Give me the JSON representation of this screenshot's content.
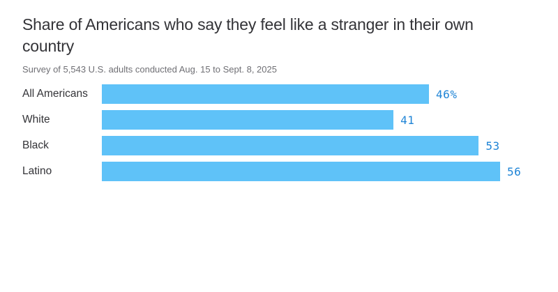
{
  "header": {
    "title": "Share of Americans who say they feel like a stranger in their own country",
    "title_lines": [
      "Share of Americans who say they feel like a stranger in their own",
      "country"
    ],
    "subtitle": "Survey of 5,543 U.S. adults conducted Aug. 15 to Sept. 8, 2025"
  },
  "colors": {
    "background": "#ffffff",
    "bar": "#5fc2f8",
    "value_label": "#1f84d6",
    "title_text": "#333337",
    "subtitle_text": "#6f6f74",
    "category_text": "#333337"
  },
  "chart_data": {
    "type": "bar",
    "orientation": "horizontal",
    "title": "Share of Americans who say they feel like a stranger in their own country",
    "subtitle": "Survey of 5,543 U.S. adults conducted Aug. 15 to Sept. 8, 2025",
    "categories": [
      "All Americans",
      "White",
      "Black",
      "Latino"
    ],
    "values": [
      46,
      41,
      53,
      56
    ],
    "value_labels": [
      "46%",
      "41",
      "53",
      "56"
    ],
    "unit": "percent",
    "xlim": [
      0,
      61
    ],
    "grid": false,
    "legend": false
  }
}
